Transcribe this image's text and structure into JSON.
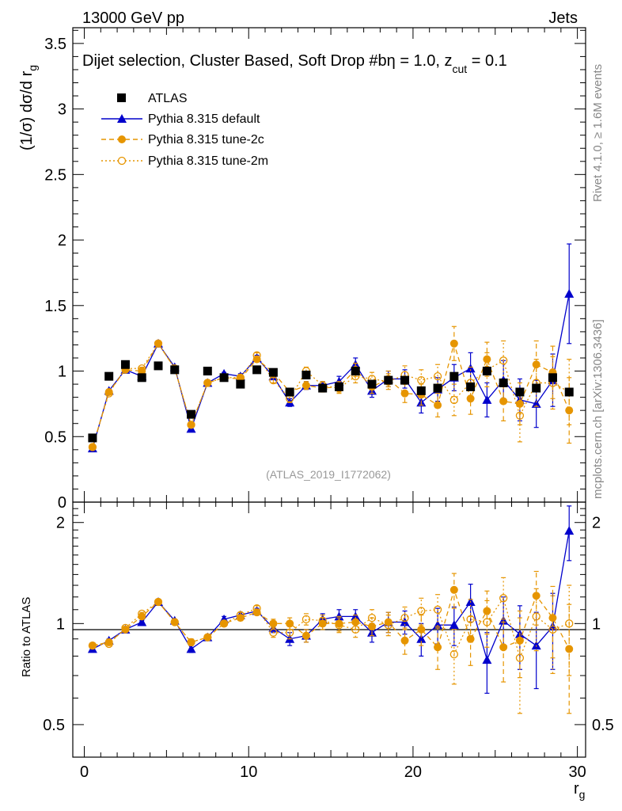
{
  "header": {
    "left": "13000 GeV pp",
    "right": "Jets",
    "subtitle": "Dijet selection, Cluster Based, Soft Drop #b",
    "subtitle_tail": "η = 1.0, z",
    "subtitle_sub": "cut",
    "subtitle_end": " = 0.1",
    "watermark": "(ATLAS_2019_I1772062)",
    "side_top": "Rivet 4.1.0, ≥ 1.6M events",
    "side_bottom": "mcplots.cern.ch [arXiv:1306.3436]"
  },
  "legend": {
    "atlas": "ATLAS",
    "default": "Pythia 8.315 default",
    "tune2c": "Pythia 8.315 tune-2c",
    "tune2m": "Pythia 8.315 tune-2m"
  },
  "colors": {
    "atlas": "#000000",
    "default": "#0000cc",
    "tune": "#e69500"
  },
  "chart_data": [
    {
      "type": "scatter",
      "panel": "main",
      "ylabel": "(1/σ) dσ/d r_g",
      "xlim": [
        -0.7,
        30.5
      ],
      "ylim": [
        0,
        3.62
      ],
      "yticks": [
        "0",
        "0.5",
        "1",
        "1.5",
        "2",
        "2.5",
        "3",
        "3.5"
      ],
      "x": [
        0.5,
        1.5,
        2.5,
        3.5,
        4.5,
        5.5,
        6.5,
        7.5,
        8.5,
        9.5,
        10.5,
        11.5,
        12.5,
        13.5,
        14.5,
        15.5,
        16.5,
        17.5,
        18.5,
        19.5,
        20.5,
        21.5,
        22.5,
        23.5,
        24.5,
        25.5,
        26.5,
        27.5,
        28.5,
        29.5
      ],
      "series": [
        {
          "name": "ATLAS",
          "values": [
            0.49,
            0.96,
            1.05,
            0.95,
            1.04,
            1.01,
            0.67,
            1.0,
            0.95,
            0.9,
            1.01,
            0.99,
            0.84,
            0.97,
            0.87,
            0.88,
            1.0,
            0.9,
            0.93,
            0.93,
            0.85,
            0.87,
            0.96,
            0.88,
            1.0,
            0.91,
            0.84,
            0.87,
            0.95,
            0.84
          ]
        },
        {
          "name": "Pythia 8.315 default",
          "values": [
            0.41,
            0.85,
            1.01,
            0.96,
            1.21,
            1.03,
            0.56,
            0.91,
            0.98,
            0.96,
            1.1,
            0.96,
            0.76,
            0.89,
            0.89,
            0.92,
            1.05,
            0.85,
            0.94,
            0.94,
            0.76,
            0.86,
            0.95,
            1.02,
            0.78,
            0.93,
            0.78,
            0.75,
            0.93,
            1.59
          ],
          "errors": [
            0.01,
            0.01,
            0.01,
            0.01,
            0.01,
            0.01,
            0.01,
            0.01,
            0.01,
            0.02,
            0.02,
            0.02,
            0.03,
            0.03,
            0.03,
            0.04,
            0.05,
            0.05,
            0.06,
            0.07,
            0.08,
            0.09,
            0.1,
            0.12,
            0.13,
            0.15,
            0.16,
            0.18,
            0.2,
            0.38
          ]
        },
        {
          "name": "Pythia 8.315 tune-2c",
          "values": [
            0.42,
            0.84,
            1.01,
            1.0,
            1.21,
            1.02,
            0.59,
            0.91,
            0.95,
            0.94,
            1.09,
            0.99,
            0.84,
            0.89,
            0.87,
            0.88,
            1.01,
            0.88,
            0.94,
            0.83,
            0.82,
            0.74,
            1.21,
            0.79,
            1.09,
            0.77,
            0.75,
            1.05,
            0.99,
            0.7
          ],
          "errors": [
            0.01,
            0.01,
            0.01,
            0.01,
            0.01,
            0.01,
            0.01,
            0.01,
            0.01,
            0.02,
            0.02,
            0.02,
            0.03,
            0.03,
            0.03,
            0.04,
            0.05,
            0.05,
            0.06,
            0.07,
            0.08,
            0.09,
            0.13,
            0.12,
            0.13,
            0.15,
            0.16,
            0.18,
            0.2,
            0.25
          ]
        },
        {
          "name": "Pythia 8.315 tune-2m",
          "values": [
            0.42,
            0.83,
            1.02,
            1.02,
            1.21,
            1.02,
            0.59,
            0.91,
            0.95,
            0.95,
            1.12,
            0.93,
            0.79,
            1.0,
            0.89,
            0.87,
            0.96,
            0.94,
            0.92,
            0.97,
            0.93,
            0.96,
            0.78,
            0.91,
            1.01,
            1.08,
            0.66,
            0.91,
            0.91,
            0.84
          ],
          "errors": [
            0.01,
            0.01,
            0.01,
            0.01,
            0.01,
            0.01,
            0.01,
            0.01,
            0.01,
            0.02,
            0.02,
            0.02,
            0.03,
            0.03,
            0.03,
            0.04,
            0.05,
            0.05,
            0.06,
            0.07,
            0.08,
            0.09,
            0.12,
            0.12,
            0.13,
            0.15,
            0.2,
            0.18,
            0.2,
            0.25
          ]
        }
      ]
    },
    {
      "type": "scatter",
      "panel": "ratio",
      "ylabel": "Ratio to ATLAS",
      "xlabel": "r_g",
      "xlim": [
        -0.7,
        30.5
      ],
      "ylim": [
        0.4,
        2.3
      ],
      "yticks": [
        "0.5",
        "1",
        "2"
      ],
      "xticks": [
        "0",
        "10",
        "20",
        "30"
      ],
      "x": [
        0.5,
        1.5,
        2.5,
        3.5,
        4.5,
        5.5,
        6.5,
        7.5,
        8.5,
        9.5,
        10.5,
        11.5,
        12.5,
        13.5,
        14.5,
        15.5,
        16.5,
        17.5,
        18.5,
        19.5,
        20.5,
        21.5,
        22.5,
        23.5,
        24.5,
        25.5,
        26.5,
        27.5,
        28.5,
        29.5
      ],
      "series": [
        {
          "name": "Pythia 8.315 default",
          "values": [
            0.84,
            0.89,
            0.96,
            1.01,
            1.16,
            1.02,
            0.84,
            0.91,
            1.03,
            1.06,
            1.09,
            0.97,
            0.9,
            0.92,
            1.03,
            1.05,
            1.05,
            0.94,
            1.01,
            1.01,
            0.9,
            0.99,
            0.99,
            1.16,
            0.78,
            1.02,
            0.93,
            0.86,
            0.98,
            1.89
          ],
          "errors": [
            0.01,
            0.01,
            0.01,
            0.01,
            0.01,
            0.01,
            0.02,
            0.01,
            0.02,
            0.02,
            0.02,
            0.03,
            0.04,
            0.04,
            0.04,
            0.05,
            0.05,
            0.06,
            0.07,
            0.08,
            0.1,
            0.12,
            0.13,
            0.15,
            0.16,
            0.18,
            0.2,
            0.22,
            0.25,
            0.35
          ]
        },
        {
          "name": "Pythia 8.315 tune-2c",
          "values": [
            0.86,
            0.88,
            0.96,
            1.05,
            1.16,
            1.01,
            0.88,
            0.91,
            1.0,
            1.04,
            1.08,
            1.0,
            1.0,
            0.92,
            1.0,
            1.0,
            1.01,
            0.98,
            1.01,
            0.89,
            0.96,
            0.85,
            1.26,
            0.9,
            1.09,
            0.85,
            0.89,
            1.21,
            1.04,
            0.84
          ],
          "errors": [
            0.01,
            0.01,
            0.01,
            0.01,
            0.01,
            0.01,
            0.02,
            0.01,
            0.02,
            0.02,
            0.02,
            0.03,
            0.04,
            0.04,
            0.04,
            0.05,
            0.05,
            0.06,
            0.07,
            0.08,
            0.1,
            0.12,
            0.15,
            0.15,
            0.16,
            0.18,
            0.2,
            0.22,
            0.25,
            0.3
          ]
        },
        {
          "name": "Pythia 8.315 tune-2m",
          "values": [
            0.86,
            0.87,
            0.97,
            1.07,
            1.16,
            1.01,
            0.88,
            0.91,
            1.0,
            1.06,
            1.11,
            0.94,
            0.94,
            1.03,
            1.02,
            0.99,
            0.96,
            1.04,
            0.99,
            1.04,
            1.09,
            1.1,
            0.81,
            1.03,
            1.01,
            1.19,
            0.79,
            1.05,
            0.96,
            1.0
          ],
          "errors": [
            0.01,
            0.01,
            0.01,
            0.01,
            0.01,
            0.01,
            0.02,
            0.01,
            0.02,
            0.02,
            0.02,
            0.03,
            0.04,
            0.04,
            0.04,
            0.05,
            0.05,
            0.06,
            0.07,
            0.08,
            0.1,
            0.12,
            0.15,
            0.15,
            0.16,
            0.18,
            0.25,
            0.22,
            0.25,
            0.3
          ]
        }
      ]
    }
  ]
}
